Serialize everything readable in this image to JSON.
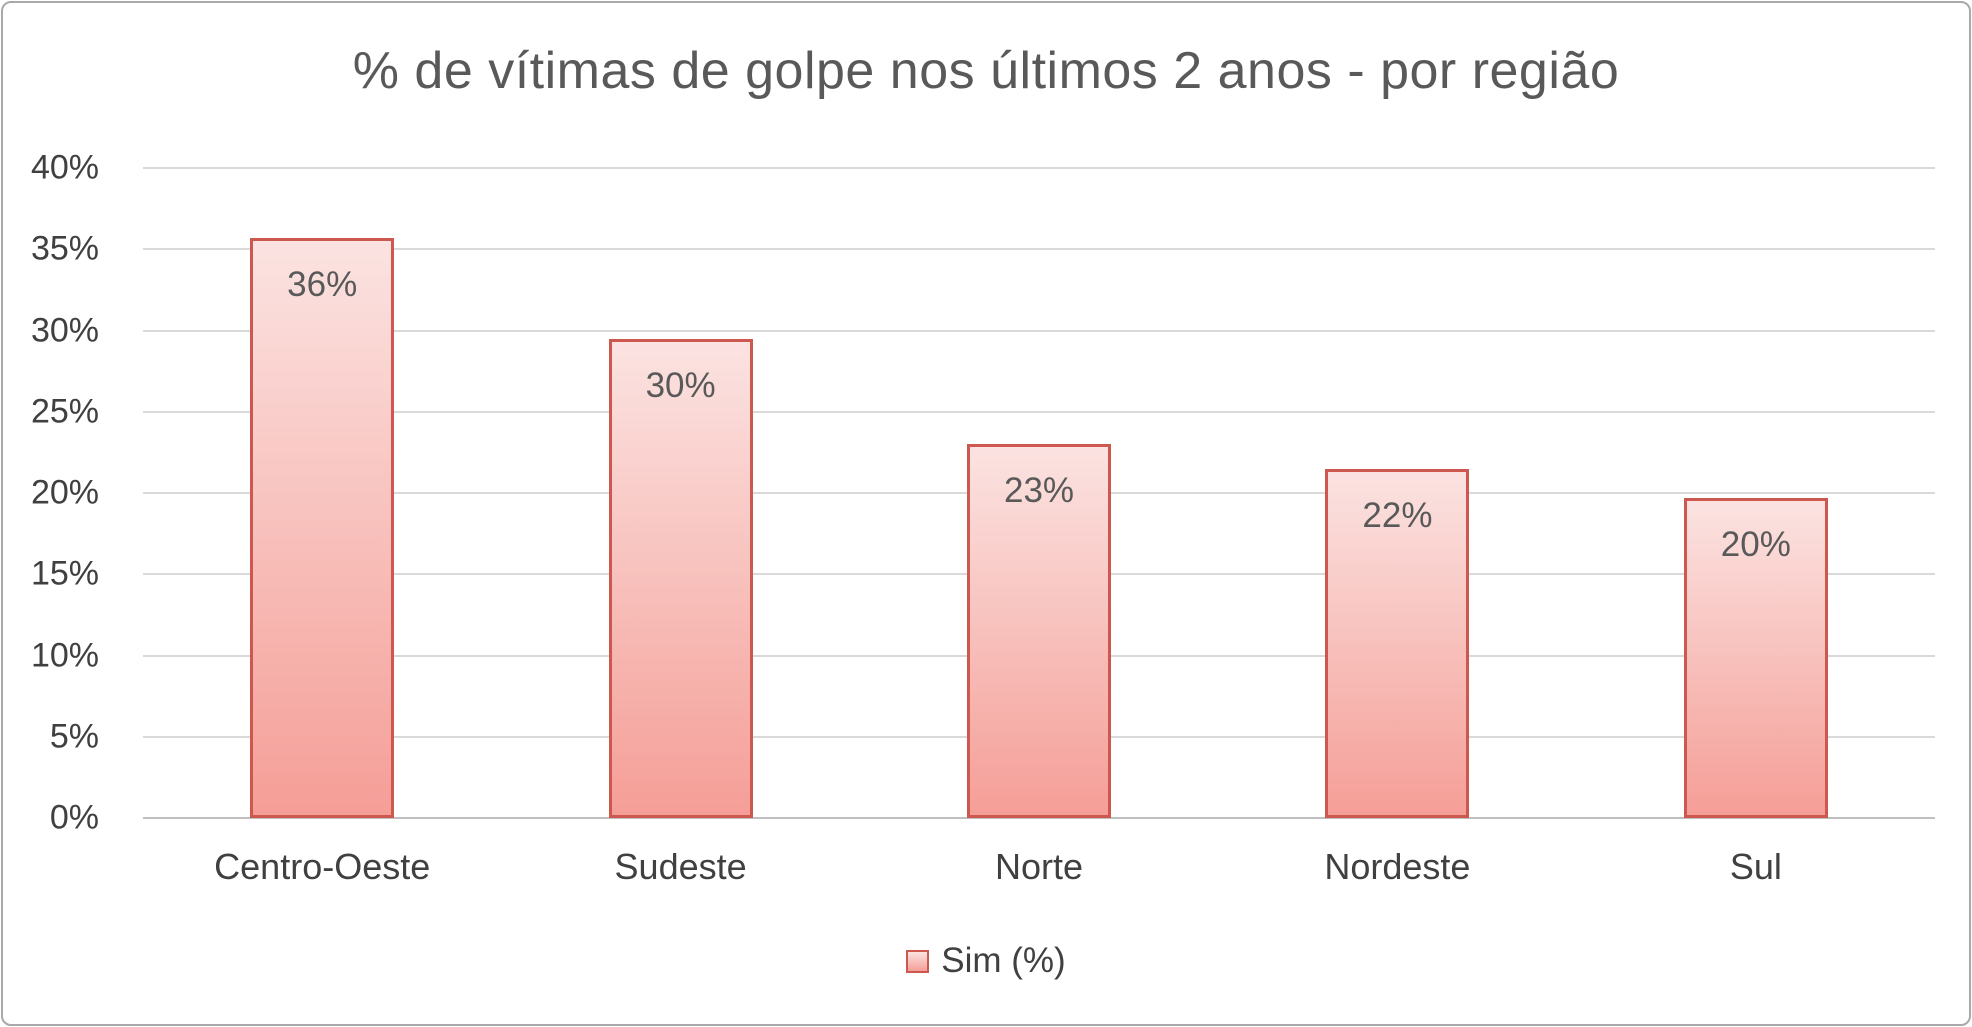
{
  "chart_data": {
    "type": "bar",
    "title": "% de vítimas de golpe nos últimos 2 anos - por região",
    "categories": [
      "Centro-Oeste",
      "Sudeste",
      "Norte",
      "Nordeste",
      "Sul"
    ],
    "values": [
      35.7,
      29.5,
      23.0,
      21.5,
      19.7
    ],
    "data_labels": [
      "36%",
      "30%",
      "23%",
      "22%",
      "20%"
    ],
    "series_name": "Sim (%)",
    "legend_position": "bottom",
    "grid": true,
    "xlabel": "",
    "ylabel": "",
    "ylim": [
      0,
      40
    ],
    "yticks": [
      0,
      5,
      10,
      15,
      20,
      25,
      30,
      35,
      40
    ],
    "ytick_suffix": "%",
    "colors": {
      "bar_fill_top": "#fbe3e1",
      "bar_fill_bottom": "#f59e97",
      "bar_border": "#cc5850",
      "gridline": "#d9d9d9",
      "axis_line": "#bfbfbf",
      "title_text": "#595959",
      "tick_text": "#404040",
      "data_label_text": "#595959",
      "frame_border": "#a9a9a9"
    }
  }
}
